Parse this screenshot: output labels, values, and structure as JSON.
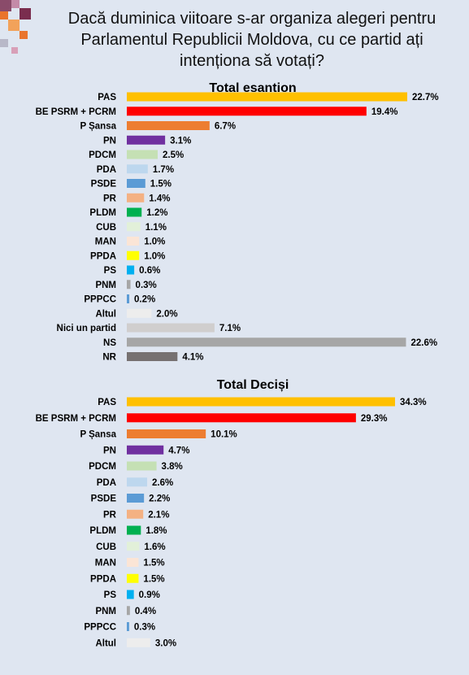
{
  "title_lines": [
    "Dacă duminica viitoare s-ar organiza alegeri pentru",
    "Parlamentul Republicii Moldova, cu ce partid ați",
    "intenționa să votați?"
  ],
  "chart_data": [
    {
      "type": "bar",
      "orientation": "horizontal",
      "title": "Total eșantion",
      "categories": [
        "PAS",
        "BE PSRM + PCRM",
        "P Șansa",
        "PN",
        "PDCM",
        "PDA",
        "PSDE",
        "PR",
        "PLDM",
        "CUB",
        "MAN",
        "PPDA",
        "PS",
        "PNM",
        "PPPCC",
        "Altul",
        "Nici un partid",
        "NS",
        "NR"
      ],
      "values": [
        22.7,
        19.4,
        6.7,
        3.1,
        2.5,
        1.7,
        1.5,
        1.4,
        1.2,
        1.1,
        1.0,
        1.0,
        0.6,
        0.3,
        0.2,
        2.0,
        7.1,
        22.6,
        4.1
      ],
      "labels": [
        "22.7%",
        "19.4%",
        "6.7%",
        "3.1%",
        "2.5%",
        "1.7%",
        "1.5%",
        "1.4%",
        "1.2%",
        "1.1%",
        "1.0%",
        "1.0%",
        "0.6%",
        "0.3%",
        "0.2%",
        "2.0%",
        "7.1%",
        "22.6%",
        "4.1%"
      ],
      "colors": [
        "#ffc000",
        "#ff0000",
        "#ed7d31",
        "#7030a0",
        "#c5e0b4",
        "#bdd7ee",
        "#5b9bd5",
        "#f4b183",
        "#00b050",
        "#e2f0d9",
        "#fbe5d6",
        "#ffff00",
        "#00b0f0",
        "#a6a6a6",
        "#5b9bd5",
        "#ededed",
        "#d0cece",
        "#a6a6a6",
        "#767171"
      ]
    },
    {
      "type": "bar",
      "orientation": "horizontal",
      "title": "Total Deciși",
      "categories": [
        "PAS",
        "BE PSRM + PCRM",
        "P Șansa",
        "PN",
        "PDCM",
        "PDA",
        "PSDE",
        "PR",
        "PLDM",
        "CUB",
        "MAN",
        "PPDA",
        "PS",
        "PNM",
        "PPPCC",
        "Altul"
      ],
      "values": [
        34.3,
        29.3,
        10.1,
        4.7,
        3.8,
        2.6,
        2.2,
        2.1,
        1.8,
        1.6,
        1.5,
        1.5,
        0.9,
        0.4,
        0.3,
        3.0
      ],
      "labels": [
        "34.3%",
        "29.3%",
        "10.1%",
        "4.7%",
        "3.8%",
        "2.6%",
        "2.2%",
        "2.1%",
        "1.8%",
        "1.6%",
        "1.5%",
        "1.5%",
        "0.9%",
        "0.4%",
        "0.3%",
        "3.0%"
      ],
      "colors": [
        "#ffc000",
        "#ff0000",
        "#ed7d31",
        "#7030a0",
        "#c5e0b4",
        "#bdd7ee",
        "#5b9bd5",
        "#f4b183",
        "#00b050",
        "#e2f0d9",
        "#fbe5d6",
        "#ffff00",
        "#00b0f0",
        "#a6a6a6",
        "#5b9bd5",
        "#ededed"
      ]
    }
  ]
}
